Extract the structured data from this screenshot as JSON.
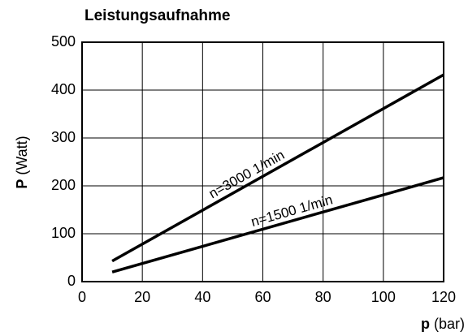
{
  "chart_data": {
    "type": "line",
    "title": "Leistungsaufnahme",
    "x_label": {
      "symbol": "p",
      "unit": "(bar)"
    },
    "y_label": {
      "symbol": "P",
      "unit": "(Watt)"
    },
    "x": [
      10,
      120
    ],
    "series": [
      {
        "name": "n=3000 1/min",
        "color": "#000000",
        "values": [
          43,
          432
        ]
      },
      {
        "name": "n=1500 1/min",
        "color": "#000000",
        "values": [
          20,
          217
        ]
      }
    ],
    "xlim": [
      0,
      120
    ],
    "xticks": [
      0,
      20,
      40,
      60,
      80,
      100,
      120
    ],
    "ylim": [
      0,
      500
    ],
    "yticks": [
      0,
      100,
      200,
      300,
      400,
      500
    ],
    "grid": true
  }
}
